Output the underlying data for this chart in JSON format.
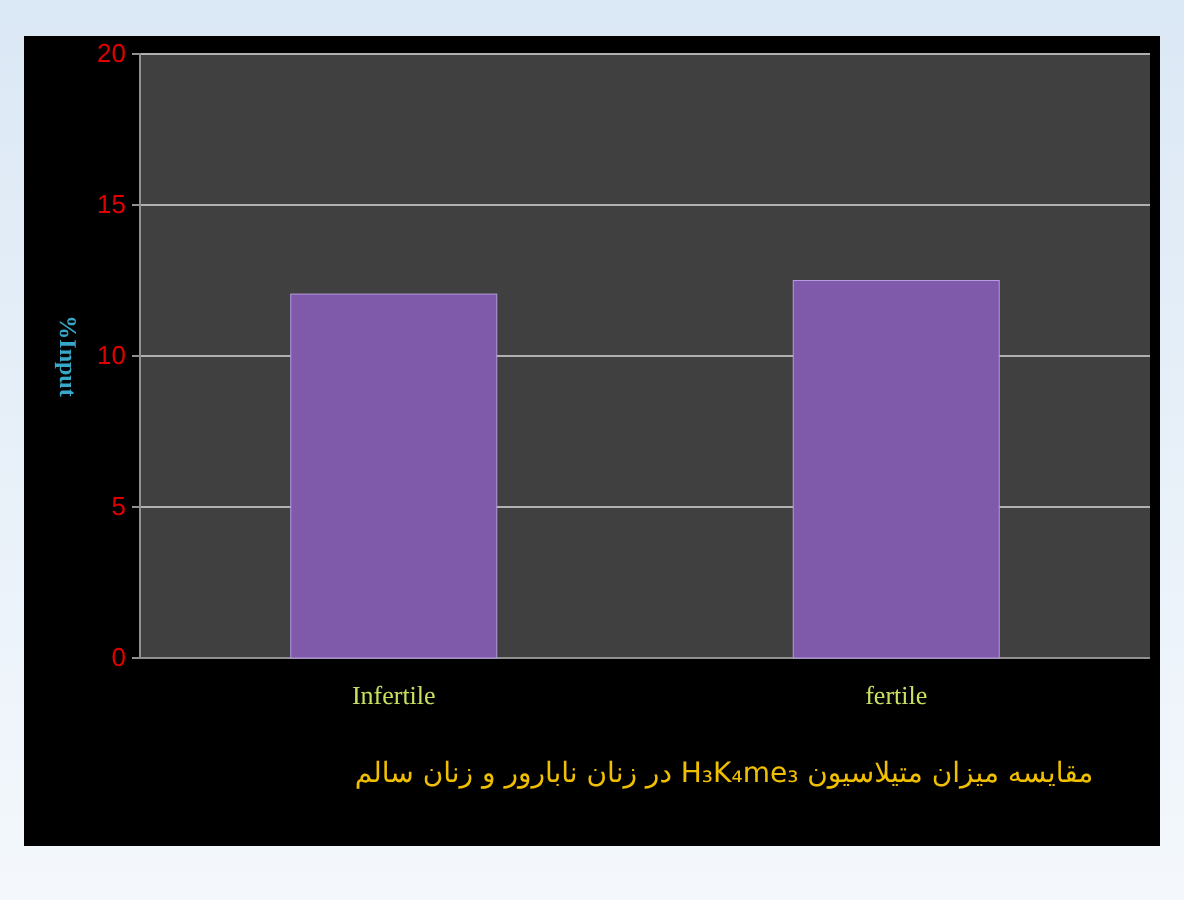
{
  "chart_data": {
    "type": "bar",
    "categories": [
      "Infertile",
      "fertile"
    ],
    "values": [
      12.05,
      12.5
    ],
    "color": "#7f5aab",
    "ylabel": "%Input",
    "xlabel": "مقایسه میزان متیلاسیون H₃K₄me₃ در زنان نابارور و زنان سالم",
    "ylim": [
      0,
      20
    ],
    "yticks": [
      0,
      5,
      10,
      15,
      20
    ],
    "grid": "y"
  }
}
